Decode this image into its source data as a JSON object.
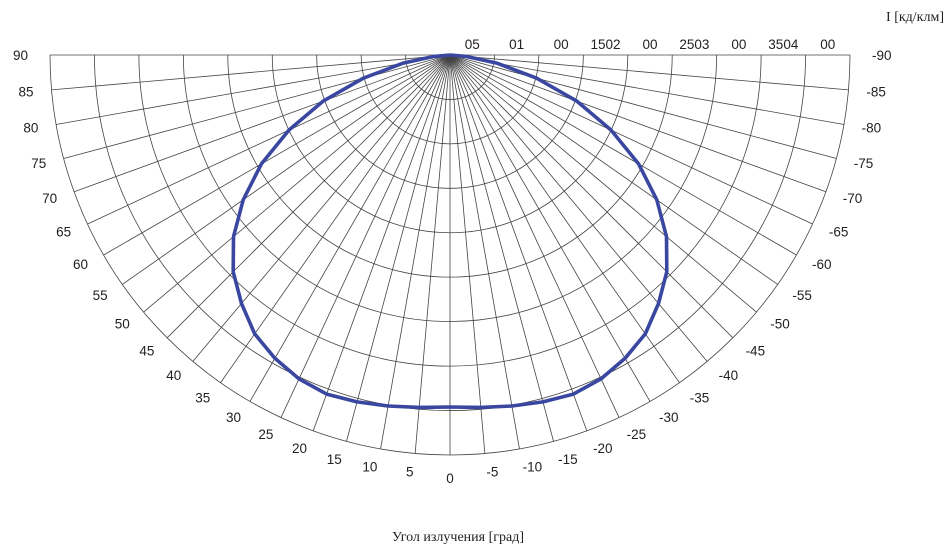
{
  "chart_data": {
    "type": "polar",
    "title": "",
    "radial_label": "I  [кд/клм]",
    "angle_label": "Угол излучения    [град]",
    "radial_tick_labels": [
      "05",
      "01",
      "00",
      "1502",
      "00",
      "2503",
      "00",
      "3504",
      "00"
    ],
    "radial_scale_max": 450,
    "angle_ticks_left": [
      "90",
      "85",
      "80",
      "75",
      "70",
      "65",
      "60",
      "55",
      "50",
      "45",
      "40",
      "35",
      "30",
      "25",
      "20",
      "15",
      "10",
      "5",
      "0"
    ],
    "angle_ticks_right": [
      "-5",
      "-10",
      "-15",
      "-20",
      "-25",
      "-30",
      "-35",
      "-40",
      "-45",
      "-50",
      "-55",
      "-60",
      "-65",
      "-70",
      "-75",
      "-80",
      "-85",
      "-90"
    ],
    "angle_range": [
      -90,
      90
    ],
    "angle_step": 5,
    "series": [
      {
        "color": "#3a47a0",
        "points": [
          {
            "angle": 0,
            "value": 396
          },
          {
            "angle": 5,
            "value": 398
          },
          {
            "angle": 10,
            "value": 401
          },
          {
            "angle": 15,
            "value": 404
          },
          {
            "angle": 20,
            "value": 406
          },
          {
            "angle": 25,
            "value": 402
          },
          {
            "angle": 30,
            "value": 394
          },
          {
            "angle": 35,
            "value": 383
          },
          {
            "angle": 40,
            "value": 365
          },
          {
            "angle": 45,
            "value": 345
          },
          {
            "angle": 50,
            "value": 318
          },
          {
            "angle": 55,
            "value": 284
          },
          {
            "angle": 60,
            "value": 245
          },
          {
            "angle": 65,
            "value": 200
          },
          {
            "angle": 70,
            "value": 152
          },
          {
            "angle": 75,
            "value": 101
          },
          {
            "angle": 80,
            "value": 54
          },
          {
            "angle": 85,
            "value": 18
          },
          {
            "angle": 90,
            "value": 0
          },
          {
            "angle": -5,
            "value": 398
          },
          {
            "angle": -10,
            "value": 401
          },
          {
            "angle": -15,
            "value": 404
          },
          {
            "angle": -20,
            "value": 406
          },
          {
            "angle": -25,
            "value": 402
          },
          {
            "angle": -30,
            "value": 394
          },
          {
            "angle": -35,
            "value": 383
          },
          {
            "angle": -40,
            "value": 365
          },
          {
            "angle": -45,
            "value": 345
          },
          {
            "angle": -50,
            "value": 318
          },
          {
            "angle": -55,
            "value": 284
          },
          {
            "angle": -60,
            "value": 245
          },
          {
            "angle": -65,
            "value": 200
          },
          {
            "angle": -70,
            "value": 152
          },
          {
            "angle": -75,
            "value": 101
          },
          {
            "angle": -80,
            "value": 54
          },
          {
            "angle": -85,
            "value": 18
          },
          {
            "angle": -90,
            "value": 0
          }
        ]
      }
    ]
  }
}
